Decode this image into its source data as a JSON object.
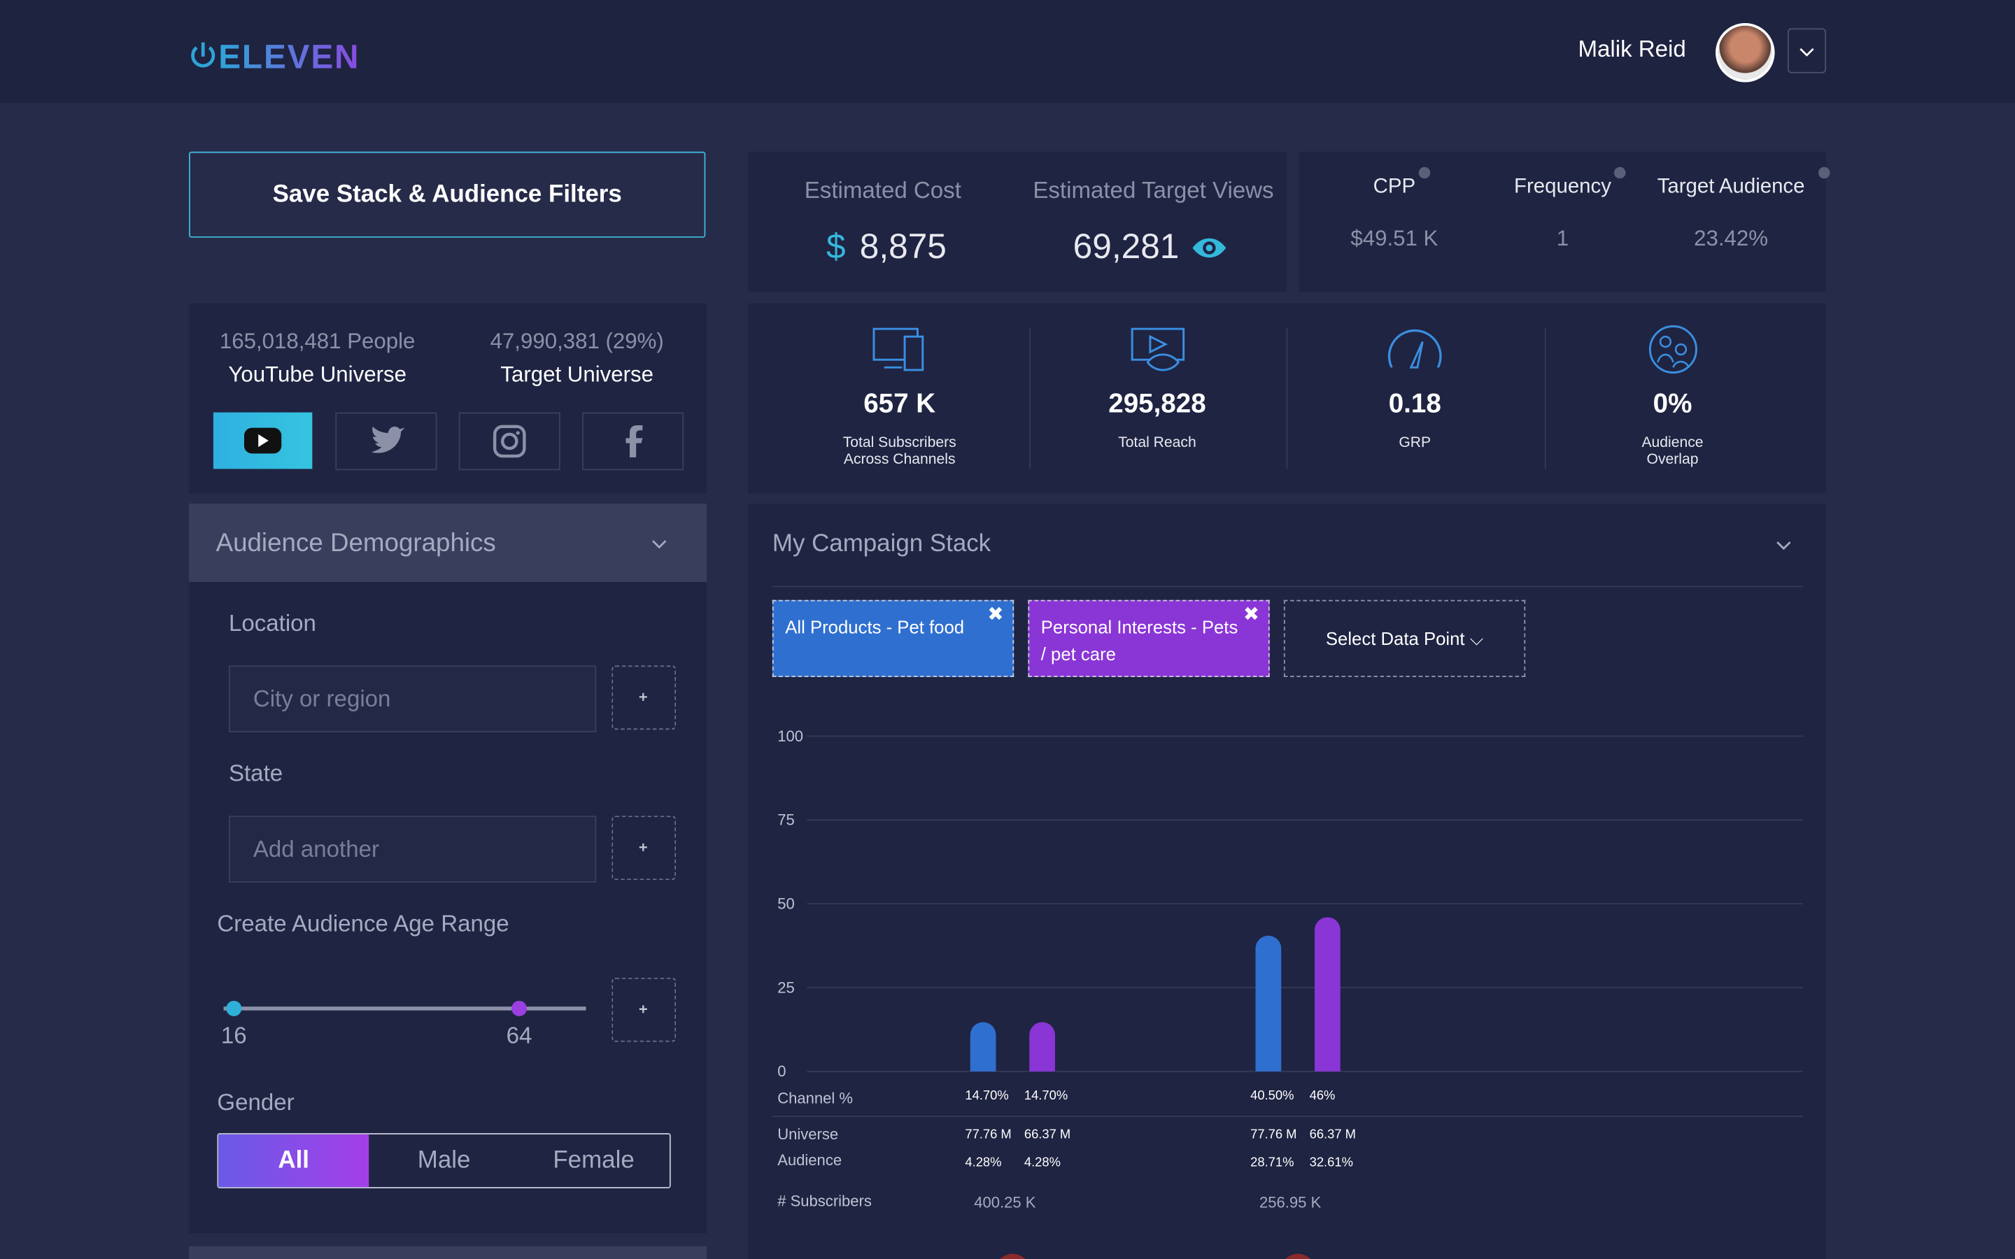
{
  "header": {
    "logo": "ELEVEN",
    "user": "Malik Reid"
  },
  "sidebar": {
    "save_button": "Save Stack & Audience Filters",
    "youtube_universe": {
      "value": "165,018,481 People",
      "label": "YouTube Universe"
    },
    "target_universe": {
      "value": "47,990,381 (29%)",
      "label": "Target Universe"
    },
    "demographics": {
      "title": "Audience Demographics",
      "location_label": "Location",
      "location_placeholder": "City or region",
      "state_label": "State",
      "state_placeholder": "Add another",
      "age_label": "Create Audience Age Range",
      "age_min": "16",
      "age_max": "64",
      "gender_label": "Gender",
      "gender_options": [
        "All",
        "Male",
        "Female"
      ]
    }
  },
  "estimates": {
    "cost_label": "Estimated Cost",
    "cost_currency": "$",
    "cost": "8,875",
    "views_label": "Estimated Target Views",
    "views": "69,281"
  },
  "metrics": [
    {
      "label": "CPP",
      "value": "$49.51 K"
    },
    {
      "label": "Frequency",
      "value": "1"
    },
    {
      "label": "Target Audience",
      "value": "23.42%"
    }
  ],
  "kpis": [
    {
      "value": "657 K",
      "label": "Total Subscribers Across Channels"
    },
    {
      "value": "295,828",
      "label": "Total Reach"
    },
    {
      "value": "0.18",
      "label": "GRP"
    },
    {
      "value": "0%",
      "label": "Audience Overlap"
    }
  ],
  "campaign": {
    "title": "My Campaign Stack",
    "select": "Select Data Point"
  },
  "chart_data": {
    "type": "bar",
    "categories": [
      null,
      null
    ],
    "series": [
      {
        "name": "All Products - Pet food",
        "color": "#2f6fcf",
        "values": [
          14.7,
          40.5
        ],
        "value_labels": [
          "14.70%",
          "40.50%"
        ],
        "universe": [
          "77.76 M",
          "77.76 M"
        ],
        "audience": [
          "4.28%",
          "28.71%"
        ]
      },
      {
        "name": "Personal Interests - Pets / pet care",
        "color": "#8a35d6",
        "values": [
          14.7,
          46
        ],
        "value_labels": [
          "14.70%",
          "46%"
        ],
        "universe": [
          "66.37 M",
          "66.37 M"
        ],
        "audience": [
          "4.28%",
          "32.61%"
        ]
      }
    ],
    "ylim": [
      0,
      100
    ],
    "yticks": [
      0,
      25,
      50,
      75,
      100
    ],
    "grid": true,
    "row_labels": [
      "Channel %",
      "Universe",
      "Audience",
      "# Subscribers"
    ],
    "subscribers": [
      "400.25 K",
      "256.95 K"
    ]
  }
}
